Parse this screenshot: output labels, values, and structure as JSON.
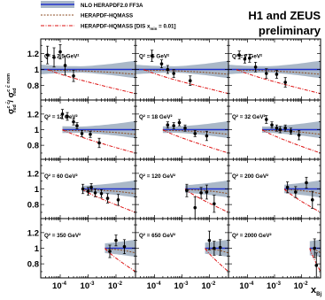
{
  "chart_data": {
    "type": "scatter",
    "layout": {
      "rows": 4,
      "cols": 3
    },
    "header": {
      "line1": "H1 and ZEUS",
      "line2": "preliminary"
    },
    "legend": [
      {
        "label": "NLO HERAPDF2.0 FF3A",
        "style": "band",
        "color": "#2233cc",
        "band_color": "#aab8c8"
      },
      {
        "label": "HERAPDF-HQMASS",
        "style": "dashed",
        "color": "#8a4a20"
      },
      {
        "label": "HERAPDF-HQMASS [DIS x",
        "label_sub": "min",
        "label_end": " = 0.01]",
        "style": "dashdot",
        "color": "#dd1111"
      }
    ],
    "ylabel": {
      "num_base": "σ",
      "num_sup": "c c̄",
      "num_sub": "red",
      "den_base": "σ",
      "den_sup": "c c̄ nom",
      "den_sub": "red"
    },
    "xlabel": {
      "base": "x",
      "sub": "Bj"
    },
    "xscale": "log",
    "xlim": [
      2e-05,
      0.05
    ],
    "ylim": [
      0.62,
      1.38
    ],
    "y_ticks": [
      {
        "v": 1.2,
        "label": "1.2"
      },
      {
        "v": 1.0,
        "label": "1"
      },
      {
        "v": 0.8,
        "label": "0.8"
      }
    ],
    "x_ticks": [
      {
        "v": 0.0001,
        "base": "10",
        "exp": "-4"
      },
      {
        "v": 0.001,
        "base": "10",
        "exp": "-3"
      },
      {
        "v": 0.01,
        "base": "10",
        "exp": "-2"
      }
    ],
    "panels": [
      {
        "q2": "Q² = 2.5 GeV²",
        "band": [
          2e-05,
          0.05
        ],
        "pdf_lo": 3.5e-05,
        "pts": [
          {
            "x": 3.5e-05,
            "y": 1.18,
            "e": 0.11
          },
          {
            "x": 6e-05,
            "y": 1.15,
            "e": 0.12
          },
          {
            "x": 0.0001,
            "y": 1.22,
            "e": 0.09
          },
          {
            "x": 0.00015,
            "y": 1.05,
            "e": 0.12
          },
          {
            "x": 0.0003,
            "y": 0.92,
            "e": 0.07
          }
        ]
      },
      {
        "q2": "Q² = 5 GeV²",
        "band": [
          2e-05,
          0.05
        ],
        "pdf_lo": 4e-05,
        "pts": [
          {
            "x": 8e-05,
            "y": 1.17,
            "e": 0.07
          },
          {
            "x": 0.00018,
            "y": 1.07,
            "e": 0.05
          },
          {
            "x": 0.0003,
            "y": 1.0,
            "e": 0.05
          },
          {
            "x": 0.0005,
            "y": 0.95,
            "e": 0.05
          },
          {
            "x": 0.002,
            "y": 0.86,
            "e": 0.06
          }
        ]
      },
      {
        "q2": "Q² = 7 GeV²",
        "band": [
          2e-05,
          0.05
        ],
        "pdf_lo": 4e-05,
        "pts": [
          {
            "x": 5e-05,
            "y": 1.18,
            "e": 0.05
          },
          {
            "x": 8e-05,
            "y": 1.13,
            "e": 0.05
          },
          {
            "x": 0.00012,
            "y": 1.14,
            "e": 0.05
          },
          {
            "x": 0.0002,
            "y": 1.03,
            "e": 0.06
          },
          {
            "x": 0.0005,
            "y": 0.95,
            "e": 0.06
          },
          {
            "x": 0.0012,
            "y": 0.94,
            "e": 0.05
          },
          {
            "x": 0.0025,
            "y": 0.84,
            "e": 0.06
          }
        ]
      },
      {
        "q2": "Q² = 12 GeV²",
        "band": [
          0.00012,
          0.05
        ],
        "pdf_lo": 0.00012,
        "pts": [
          {
            "x": 0.00012,
            "y": 1.2,
            "e": 0.06
          },
          {
            "x": 0.00018,
            "y": 1.17,
            "e": 0.05
          },
          {
            "x": 0.0003,
            "y": 1.1,
            "e": 0.04
          },
          {
            "x": 0.0004,
            "y": 1.05,
            "e": 0.04
          },
          {
            "x": 0.0006,
            "y": 0.95,
            "e": 0.04
          },
          {
            "x": 0.0012,
            "y": 0.94,
            "e": 0.04
          },
          {
            "x": 0.0025,
            "y": 0.83,
            "e": 0.06
          }
        ]
      },
      {
        "q2": "Q² = 18 GeV²",
        "band": [
          0.0002,
          0.05
        ],
        "pdf_lo": 0.0002,
        "pts": [
          {
            "x": 0.0003,
            "y": 1.06,
            "e": 0.04
          },
          {
            "x": 0.0005,
            "y": 1.05,
            "e": 0.04
          },
          {
            "x": 0.0008,
            "y": 1.09,
            "e": 0.04
          },
          {
            "x": 0.0013,
            "y": 1.02,
            "e": 0.04
          },
          {
            "x": 0.003,
            "y": 0.95,
            "e": 0.04
          },
          {
            "x": 0.008,
            "y": 0.92,
            "e": 0.06
          }
        ]
      },
      {
        "q2": "Q² = 32 GeV²",
        "band": [
          0.00035,
          0.05
        ],
        "pdf_lo": 0.00035,
        "pts": [
          {
            "x": 0.0005,
            "y": 1.13,
            "e": 0.05
          },
          {
            "x": 0.0008,
            "y": 1.06,
            "e": 0.04
          },
          {
            "x": 0.0012,
            "y": 1.02,
            "e": 0.04
          },
          {
            "x": 0.0016,
            "y": 1.0,
            "e": 0.04
          },
          {
            "x": 0.0025,
            "y": 1.02,
            "e": 0.04
          },
          {
            "x": 0.004,
            "y": 0.98,
            "e": 0.04
          },
          {
            "x": 0.008,
            "y": 0.93,
            "e": 0.06
          }
        ]
      },
      {
        "q2": "Q² = 60 GeV²",
        "band": [
          0.0006,
          0.05
        ],
        "pdf_lo": 0.0006,
        "pts": [
          {
            "x": 0.00065,
            "y": 1.0,
            "e": 0.06
          },
          {
            "x": 0.001,
            "y": 0.97,
            "e": 0.05
          },
          {
            "x": 0.0013,
            "y": 1.02,
            "e": 0.05
          },
          {
            "x": 0.0018,
            "y": 0.95,
            "e": 0.05
          },
          {
            "x": 0.003,
            "y": 0.94,
            "e": 0.05
          },
          {
            "x": 0.005,
            "y": 0.88,
            "e": 0.06
          },
          {
            "x": 0.012,
            "y": 0.86,
            "e": 0.07
          }
        ]
      },
      {
        "q2": "Q² = 120 GeV²",
        "band": [
          0.0013,
          0.05
        ],
        "pdf_lo": 0.0013,
        "pts": [
          {
            "x": 0.0015,
            "y": 0.98,
            "e": 0.08
          },
          {
            "x": 0.003,
            "y": 0.76,
            "e": 0.14
          },
          {
            "x": 0.005,
            "y": 0.95,
            "e": 0.07
          },
          {
            "x": 0.008,
            "y": 0.96,
            "e": 0.09
          },
          {
            "x": 0.015,
            "y": 0.81,
            "e": 0.11
          }
        ]
      },
      {
        "q2": "Q² = 200 GeV²",
        "band": [
          0.0023,
          0.05
        ],
        "pdf_lo": 0.0023,
        "pts": [
          {
            "x": 0.003,
            "y": 1.02,
            "e": 0.07
          },
          {
            "x": 0.006,
            "y": 0.96,
            "e": 0.07
          },
          {
            "x": 0.015,
            "y": 1.08,
            "e": 0.07
          },
          {
            "x": 0.025,
            "y": 0.86,
            "e": 0.11
          }
        ]
      },
      {
        "q2": "Q² = 350 GeV²",
        "band": [
          0.004,
          0.05
        ],
        "pdf_lo": 0.004,
        "pts": [
          {
            "x": 0.006,
            "y": 0.96,
            "e": 0.08
          },
          {
            "x": 0.01,
            "y": 1.1,
            "e": 0.07
          },
          {
            "x": 0.02,
            "y": 1.02,
            "e": 0.09
          }
        ]
      },
      {
        "q2": "Q² = 650 GeV²",
        "band": [
          0.007,
          0.05
        ],
        "pdf_lo": 0.007,
        "pts": [
          {
            "x": 0.01,
            "y": 1.1,
            "e": 0.12
          },
          {
            "x": 0.015,
            "y": 1.0,
            "e": 0.09
          },
          {
            "x": 0.025,
            "y": 1.01,
            "e": 0.1
          }
        ]
      },
      {
        "q2": "Q² = 2000 GeV²",
        "band": [
          0.02,
          0.05
        ],
        "pdf_lo": 0.02,
        "pts": [
          {
            "x": 0.03,
            "y": 1.0,
            "e": 0.12
          },
          {
            "x": 0.035,
            "y": 0.78,
            "e": 0.16
          }
        ]
      }
    ]
  }
}
